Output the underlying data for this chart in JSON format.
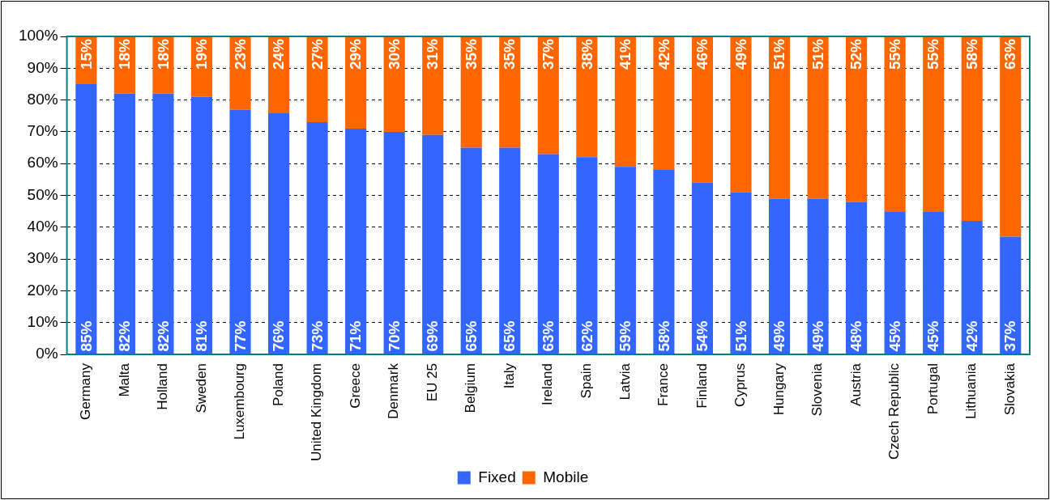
{
  "chart_data": {
    "type": "bar",
    "stacked": true,
    "categories": [
      "Germany",
      "Malta",
      "Holland",
      "Sweden",
      "Luxembourg",
      "Poland",
      "United Kingdom",
      "Greece",
      "Denmark",
      "EU 25",
      "Belgium",
      "Italy",
      "Ireland",
      "Spain",
      "Latvia",
      "France",
      "Finland",
      "Cyprus",
      "Hungary",
      "Slovenia",
      "Austria",
      "Czech Republic",
      "Portugal",
      "Lithuania",
      "Slovakia"
    ],
    "series": [
      {
        "name": "Fixed",
        "color": "#3366ff",
        "values": [
          85,
          82,
          82,
          81,
          77,
          76,
          73,
          71,
          70,
          69,
          65,
          65,
          63,
          62,
          59,
          58,
          54,
          51,
          49,
          49,
          48,
          45,
          45,
          42,
          37
        ],
        "value_labels": [
          "85%",
          "82%",
          "82%",
          "81%",
          "77%",
          "76%",
          "73%",
          "71%",
          "70%",
          "69%",
          "65%",
          "65%",
          "63%",
          "62%",
          "59%",
          "58%",
          "54%",
          "51%",
          "49%",
          "49%",
          "48%",
          "45%",
          "45%",
          "42%",
          "37%"
        ]
      },
      {
        "name": "Mobile",
        "color": "#ff6600",
        "values": [
          15,
          18,
          18,
          19,
          23,
          24,
          27,
          29,
          30,
          31,
          35,
          35,
          37,
          38,
          41,
          42,
          46,
          49,
          51,
          51,
          52,
          55,
          55,
          58,
          63
        ],
        "value_labels": [
          "15%",
          "18%",
          "18%",
          "19%",
          "23%",
          "24%",
          "27%",
          "29%",
          "30%",
          "31%",
          "35%",
          "35%",
          "37%",
          "38%",
          "41%",
          "42%",
          "46%",
          "49%",
          "51%",
          "51%",
          "52%",
          "55%",
          "55%",
          "58%",
          "63%"
        ]
      }
    ],
    "ylim": [
      0,
      100
    ],
    "yticks": [
      {
        "value": 0,
        "label": "0%"
      },
      {
        "value": 10,
        "label": "10%"
      },
      {
        "value": 20,
        "label": "20%"
      },
      {
        "value": 30,
        "label": "30%"
      },
      {
        "value": 40,
        "label": "40%"
      },
      {
        "value": 50,
        "label": "50%"
      },
      {
        "value": 60,
        "label": "60%"
      },
      {
        "value": 70,
        "label": "70%"
      },
      {
        "value": 80,
        "label": "80%"
      },
      {
        "value": 90,
        "label": "90%"
      },
      {
        "value": 100,
        "label": "100%"
      }
    ],
    "grid": "y",
    "legend": "bottom"
  }
}
